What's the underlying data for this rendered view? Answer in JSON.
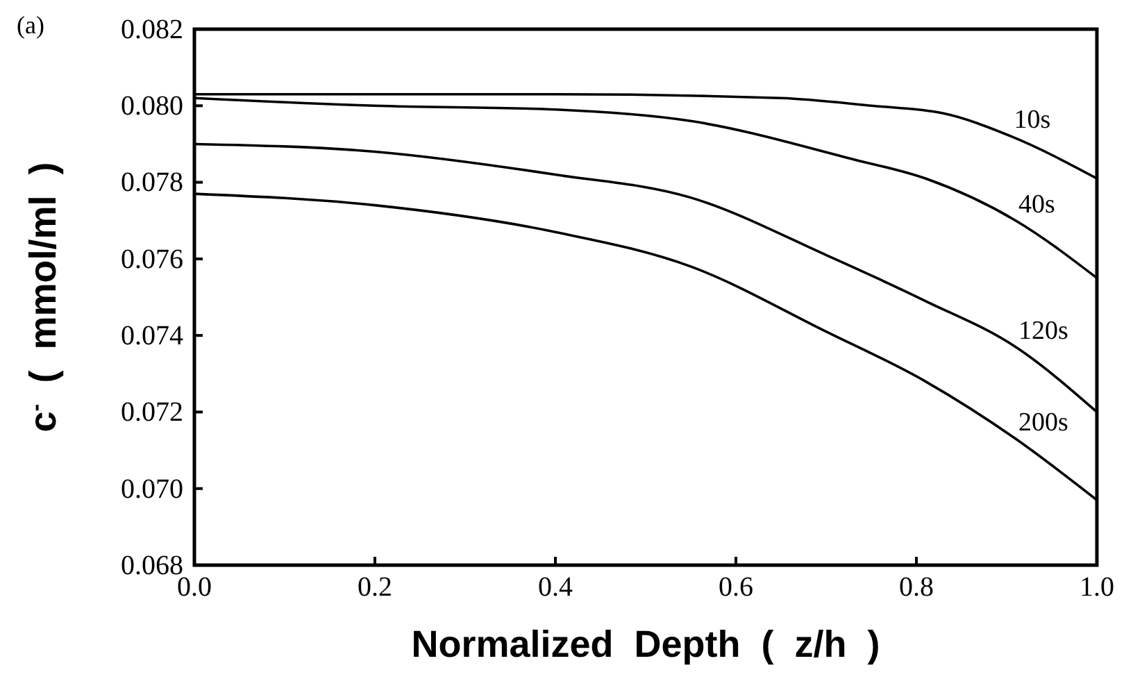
{
  "chart_data": {
    "type": "line",
    "xlabel": "Normalized  Depth  (  z/h  )",
    "ylabel": "c$^{-}$  (  mmol/ml  )",
    "annotations": [
      "(a)"
    ],
    "xlim": [
      0,
      1
    ],
    "xticks": [
      {
        "value": 0,
        "label": "0.0"
      },
      {
        "value": 0.2,
        "label": "0.2"
      },
      {
        "value": 0.4,
        "label": "0.4"
      },
      {
        "value": 0.6,
        "label": "0.6"
      },
      {
        "value": 0.8,
        "label": "0.8"
      },
      {
        "value": 1,
        "label": "1.0"
      }
    ],
    "ylim": [
      0.068,
      0.082
    ],
    "yticks": [
      {
        "value": 0.068,
        "label": "0.068"
      },
      {
        "value": 0.07,
        "label": "0.070"
      },
      {
        "value": 0.072,
        "label": "0.072"
      },
      {
        "value": 0.074,
        "label": "0.074"
      },
      {
        "value": 0.076,
        "label": "0.076"
      },
      {
        "value": 0.078,
        "label": "0.078"
      },
      {
        "value": 0.08,
        "label": "0.080"
      },
      {
        "value": 0.082,
        "label": "0.082"
      }
    ],
    "grid": false,
    "marker": "none",
    "line_style": "solid",
    "series": [
      {
        "name": "10s",
        "color": "#000000",
        "x": [
          0,
          0.4,
          0.65,
          0.75,
          0.83,
          0.905,
          1
        ],
        "values": [
          0.0803,
          0.0803,
          0.0802,
          0.08,
          0.0798,
          0.0792,
          0.0781
        ]
      },
      {
        "name": "40s",
        "color": "#000000",
        "x": [
          0,
          0.2,
          0.4,
          0.55,
          0.73,
          0.81,
          0.91,
          1
        ],
        "values": [
          0.0802,
          0.08,
          0.0799,
          0.0796,
          0.0786,
          0.0781,
          0.077,
          0.0755
        ]
      },
      {
        "name": "120s",
        "color": "#000000",
        "x": [
          0,
          0.2,
          0.4,
          0.55,
          0.7,
          0.81,
          0.91,
          1
        ],
        "values": [
          0.079,
          0.0788,
          0.0782,
          0.0776,
          0.0761,
          0.0749,
          0.0737,
          0.072
        ]
      },
      {
        "name": "200s",
        "color": "#000000",
        "x": [
          0,
          0.2,
          0.4,
          0.55,
          0.7,
          0.81,
          0.91,
          1
        ],
        "values": [
          0.0777,
          0.0774,
          0.0767,
          0.0758,
          0.0741,
          0.0728,
          0.0713,
          0.0697
        ]
      }
    ]
  }
}
